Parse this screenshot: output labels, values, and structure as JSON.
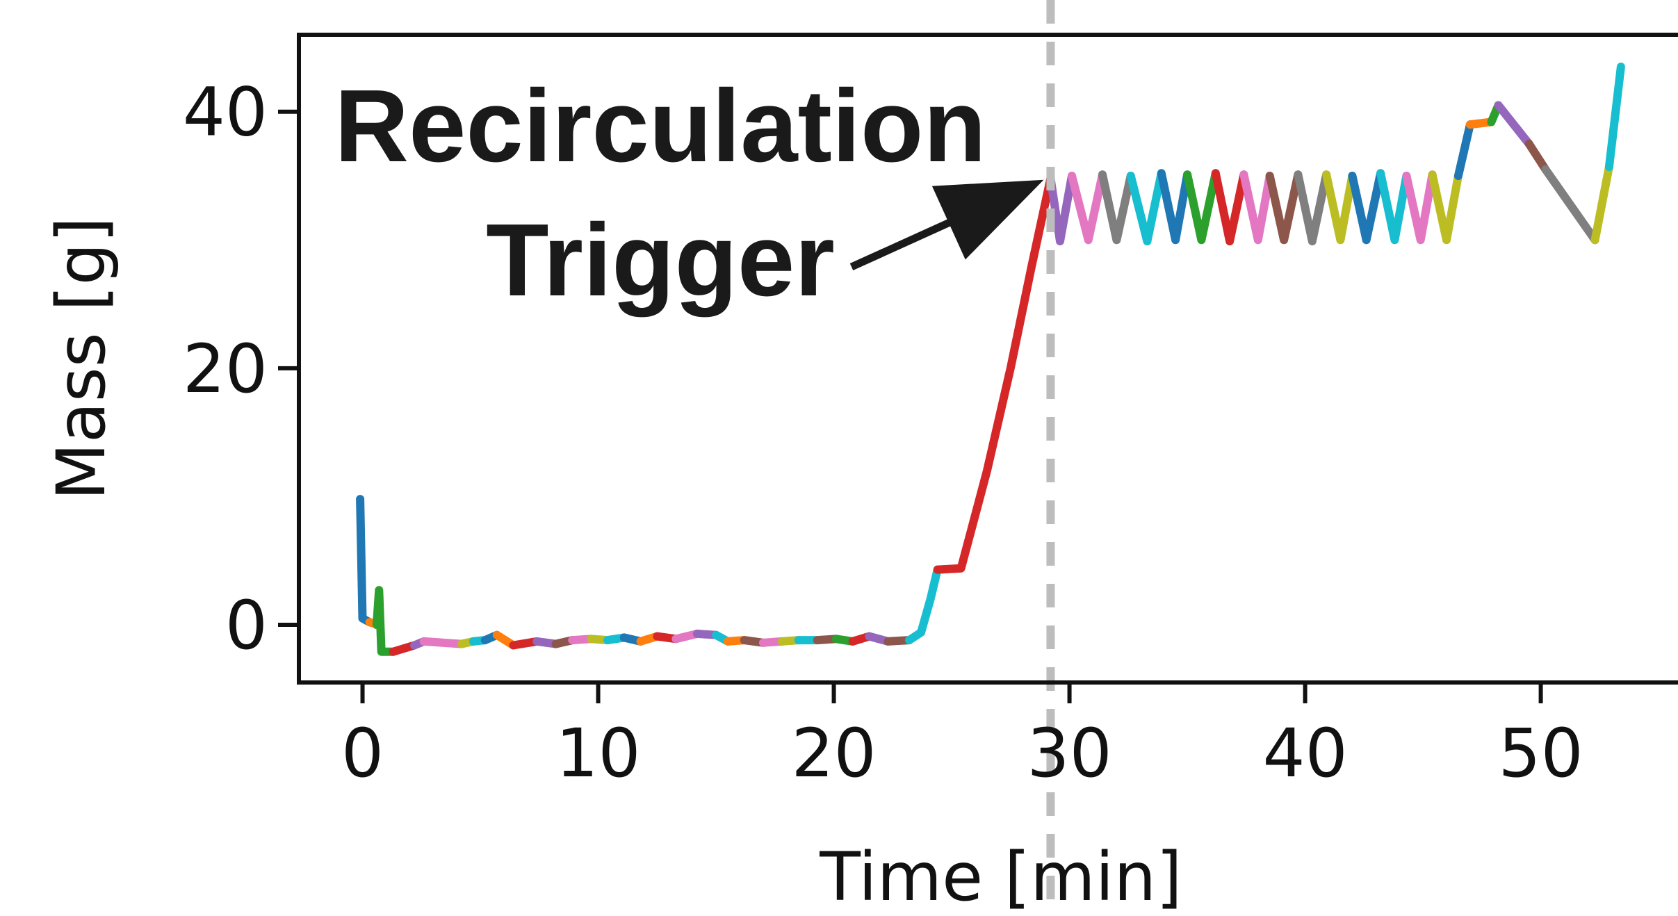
{
  "chart_data": {
    "type": "line",
    "xlabel": "Time [min]",
    "ylabel": "Mass [g]",
    "xlim": [
      -2.7,
      56
    ],
    "ylim": [
      -4.5,
      46
    ],
    "xticks": [
      0,
      10,
      20,
      30,
      40,
      50
    ],
    "yticks": [
      0,
      20,
      40
    ],
    "grid": false,
    "annotation": {
      "lines": [
        "Recirculation",
        "Trigger"
      ],
      "arrow_target": [
        29.2,
        34.8
      ]
    },
    "trigger_time": 29.2,
    "colors": [
      "#1f77b4",
      "#ff7f0e",
      "#2ca02c",
      "#d62728",
      "#9467bd",
      "#8c564b",
      "#e377c2",
      "#7f7f7f",
      "#bcbd22",
      "#17becf"
    ],
    "trigger_line_color": "#bdbdbd",
    "series": [
      {
        "color": "#1f77b4",
        "points": [
          [
            -0.1,
            9.8
          ],
          [
            0.0,
            0.5
          ],
          [
            0.3,
            0.2
          ]
        ]
      },
      {
        "color": "#ff7f0e",
        "points": [
          [
            0.3,
            0.2
          ],
          [
            0.5,
            0.1
          ],
          [
            0.6,
            0.0
          ]
        ]
      },
      {
        "color": "#2ca02c",
        "points": [
          [
            0.6,
            0.0
          ],
          [
            0.7,
            2.7
          ],
          [
            0.8,
            -2.1
          ],
          [
            1.3,
            -2.1
          ]
        ]
      },
      {
        "color": "#d62728",
        "points": [
          [
            1.3,
            -2.1
          ],
          [
            2.2,
            -1.6
          ]
        ]
      },
      {
        "color": "#9467bd",
        "points": [
          [
            2.2,
            -1.6
          ],
          [
            2.6,
            -1.3
          ]
        ]
      },
      {
        "color": "#e377c2",
        "points": [
          [
            2.6,
            -1.3
          ],
          [
            4.2,
            -1.5
          ]
        ]
      },
      {
        "color": "#bcbd22",
        "points": [
          [
            4.2,
            -1.5
          ],
          [
            4.7,
            -1.3
          ]
        ]
      },
      {
        "color": "#17becf",
        "points": [
          [
            4.7,
            -1.3
          ],
          [
            5.2,
            -1.2
          ]
        ]
      },
      {
        "color": "#1f77b4",
        "points": [
          [
            5.2,
            -1.2
          ],
          [
            5.7,
            -0.8
          ]
        ]
      },
      {
        "color": "#ff7f0e",
        "points": [
          [
            5.7,
            -0.8
          ],
          [
            6.4,
            -1.6
          ]
        ]
      },
      {
        "color": "#d62728",
        "points": [
          [
            6.4,
            -1.6
          ],
          [
            7.4,
            -1.3
          ]
        ]
      },
      {
        "color": "#9467bd",
        "points": [
          [
            7.4,
            -1.3
          ],
          [
            8.2,
            -1.5
          ]
        ]
      },
      {
        "color": "#8c564b",
        "points": [
          [
            8.2,
            -1.5
          ],
          [
            8.9,
            -1.2
          ]
        ]
      },
      {
        "color": "#e377c2",
        "points": [
          [
            8.9,
            -1.2
          ],
          [
            9.7,
            -1.1
          ]
        ]
      },
      {
        "color": "#bcbd22",
        "points": [
          [
            9.7,
            -1.1
          ],
          [
            10.4,
            -1.2
          ]
        ]
      },
      {
        "color": "#17becf",
        "points": [
          [
            10.4,
            -1.2
          ],
          [
            11.1,
            -1.0
          ]
        ]
      },
      {
        "color": "#1f77b4",
        "points": [
          [
            11.1,
            -1.0
          ],
          [
            11.8,
            -1.3
          ]
        ]
      },
      {
        "color": "#ff7f0e",
        "points": [
          [
            11.8,
            -1.3
          ],
          [
            12.5,
            -0.9
          ]
        ]
      },
      {
        "color": "#d62728",
        "points": [
          [
            12.5,
            -0.9
          ],
          [
            13.3,
            -1.1
          ]
        ]
      },
      {
        "color": "#e377c2",
        "points": [
          [
            13.3,
            -1.1
          ],
          [
            14.2,
            -0.7
          ]
        ]
      },
      {
        "color": "#9467bd",
        "points": [
          [
            14.2,
            -0.7
          ],
          [
            15.0,
            -0.8
          ]
        ]
      },
      {
        "color": "#17becf",
        "points": [
          [
            15.0,
            -0.8
          ],
          [
            15.5,
            -1.3
          ]
        ]
      },
      {
        "color": "#ff7f0e",
        "points": [
          [
            15.5,
            -1.3
          ],
          [
            16.2,
            -1.2
          ]
        ]
      },
      {
        "color": "#8c564b",
        "points": [
          [
            16.2,
            -1.2
          ],
          [
            17.0,
            -1.4
          ]
        ]
      },
      {
        "color": "#e377c2",
        "points": [
          [
            17.0,
            -1.4
          ],
          [
            17.8,
            -1.3
          ]
        ]
      },
      {
        "color": "#bcbd22",
        "points": [
          [
            17.8,
            -1.3
          ],
          [
            18.5,
            -1.2
          ]
        ]
      },
      {
        "color": "#17becf",
        "points": [
          [
            18.5,
            -1.2
          ],
          [
            19.3,
            -1.2
          ]
        ]
      },
      {
        "color": "#8c564b",
        "points": [
          [
            19.3,
            -1.2
          ],
          [
            20.1,
            -1.1
          ]
        ]
      },
      {
        "color": "#2ca02c",
        "points": [
          [
            20.1,
            -1.1
          ],
          [
            20.8,
            -1.3
          ]
        ]
      },
      {
        "color": "#d62728",
        "points": [
          [
            20.8,
            -1.3
          ],
          [
            21.5,
            -0.9
          ]
        ]
      },
      {
        "color": "#9467bd",
        "points": [
          [
            21.5,
            -0.9
          ],
          [
            22.3,
            -1.3
          ]
        ]
      },
      {
        "color": "#8c564b",
        "points": [
          [
            22.3,
            -1.3
          ],
          [
            23.2,
            -1.2
          ]
        ]
      },
      {
        "color": "#17becf",
        "points": [
          [
            23.2,
            -1.2
          ],
          [
            23.7,
            -0.6
          ],
          [
            24.1,
            2.0
          ],
          [
            24.4,
            4.3
          ]
        ]
      },
      {
        "color": "#d62728",
        "points": [
          [
            24.4,
            4.3
          ],
          [
            25.4,
            4.4
          ],
          [
            26.5,
            12.0
          ],
          [
            27.5,
            20.0
          ],
          [
            28.4,
            28.0
          ],
          [
            29.2,
            34.8
          ]
        ]
      },
      {
        "color": "#9467bd",
        "points": [
          [
            29.2,
            34.8
          ],
          [
            29.6,
            29.9
          ],
          [
            30.1,
            35.0
          ]
        ]
      },
      {
        "color": "#e377c2",
        "points": [
          [
            30.1,
            35.0
          ],
          [
            30.8,
            30.0
          ],
          [
            31.4,
            35.1
          ]
        ]
      },
      {
        "color": "#7f7f7f",
        "points": [
          [
            31.4,
            35.1
          ],
          [
            32.0,
            30.0
          ],
          [
            32.6,
            35.0
          ]
        ]
      },
      {
        "color": "#17becf",
        "points": [
          [
            32.6,
            35.0
          ],
          [
            33.3,
            29.9
          ],
          [
            33.9,
            35.2
          ]
        ]
      },
      {
        "color": "#1f77b4",
        "points": [
          [
            33.9,
            35.2
          ],
          [
            34.5,
            30.0
          ],
          [
            35.0,
            35.1
          ]
        ]
      },
      {
        "color": "#2ca02c",
        "points": [
          [
            35.0,
            35.1
          ],
          [
            35.6,
            30.0
          ],
          [
            36.2,
            35.2
          ]
        ]
      },
      {
        "color": "#d62728",
        "points": [
          [
            36.2,
            35.2
          ],
          [
            36.8,
            29.9
          ],
          [
            37.4,
            35.1
          ]
        ]
      },
      {
        "color": "#e377c2",
        "points": [
          [
            37.4,
            35.1
          ],
          [
            38.0,
            30.0
          ],
          [
            38.5,
            35.0
          ]
        ]
      },
      {
        "color": "#8c564b",
        "points": [
          [
            38.5,
            35.0
          ],
          [
            39.1,
            30.0
          ],
          [
            39.7,
            35.1
          ]
        ]
      },
      {
        "color": "#7f7f7f",
        "points": [
          [
            39.7,
            35.1
          ],
          [
            40.3,
            29.9
          ],
          [
            40.9,
            35.1
          ]
        ]
      },
      {
        "color": "#bcbd22",
        "points": [
          [
            40.9,
            35.1
          ],
          [
            41.5,
            30.0
          ],
          [
            42.0,
            35.0
          ]
        ]
      },
      {
        "color": "#1f77b4",
        "points": [
          [
            42.0,
            35.0
          ],
          [
            42.6,
            30.0
          ],
          [
            43.2,
            35.2
          ]
        ]
      },
      {
        "color": "#17becf",
        "points": [
          [
            43.2,
            35.2
          ],
          [
            43.8,
            30.0
          ],
          [
            44.3,
            35.0
          ]
        ]
      },
      {
        "color": "#e377c2",
        "points": [
          [
            44.3,
            35.0
          ],
          [
            44.9,
            30.0
          ],
          [
            45.4,
            35.1
          ]
        ]
      },
      {
        "color": "#bcbd22",
        "points": [
          [
            45.4,
            35.1
          ],
          [
            46.0,
            30.0
          ],
          [
            46.5,
            35.0
          ]
        ]
      },
      {
        "color": "#1f77b4",
        "points": [
          [
            46.5,
            35.0
          ],
          [
            47.0,
            39.0
          ]
        ]
      },
      {
        "color": "#ff7f0e",
        "points": [
          [
            47.0,
            39.0
          ],
          [
            47.9,
            39.2
          ]
        ]
      },
      {
        "color": "#2ca02c",
        "points": [
          [
            47.9,
            39.2
          ],
          [
            48.2,
            40.5
          ]
        ]
      },
      {
        "color": "#9467bd",
        "points": [
          [
            48.2,
            40.5
          ],
          [
            49.5,
            37.5
          ]
        ]
      },
      {
        "color": "#8c564b",
        "points": [
          [
            49.5,
            37.5
          ],
          [
            50.2,
            35.5
          ]
        ]
      },
      {
        "color": "#7f7f7f",
        "points": [
          [
            50.2,
            35.5
          ],
          [
            52.3,
            30.0
          ]
        ]
      },
      {
        "color": "#bcbd22",
        "points": [
          [
            52.3,
            30.0
          ],
          [
            52.9,
            35.7
          ]
        ]
      },
      {
        "color": "#17becf",
        "points": [
          [
            52.9,
            35.7
          ],
          [
            53.4,
            43.5
          ]
        ]
      }
    ]
  }
}
